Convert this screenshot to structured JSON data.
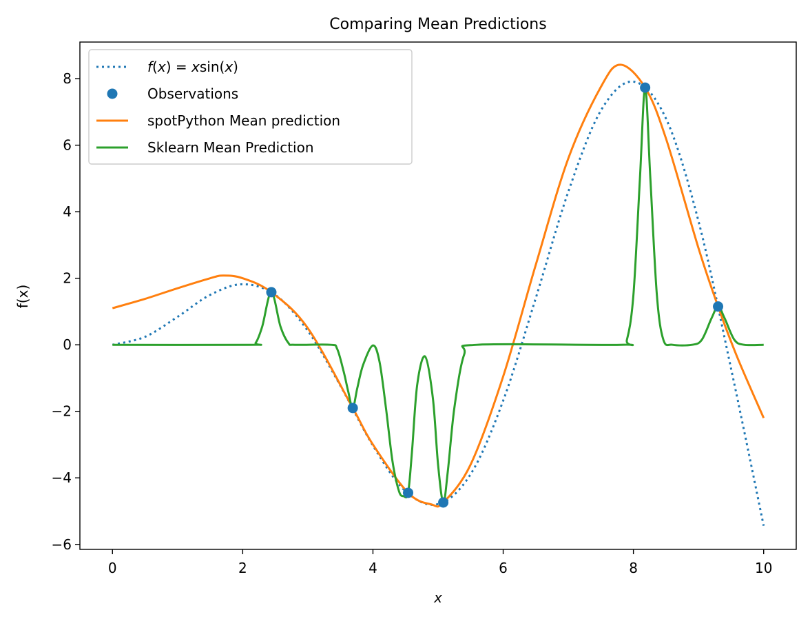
{
  "chart_data": {
    "type": "line",
    "title": "Comparing Mean Predictions",
    "xlabel": "x",
    "ylabel": "f(x)",
    "xlim": [
      -0.5,
      10.5
    ],
    "ylim": [
      -6.15,
      9.1
    ],
    "xticks": [
      0,
      2,
      4,
      6,
      8,
      10
    ],
    "xtick_labels": [
      "0",
      "2",
      "4",
      "6",
      "8",
      "10"
    ],
    "yticks": [
      -6,
      -4,
      -2,
      0,
      2,
      4,
      6,
      8
    ],
    "ytick_labels": [
      "−6",
      "−4",
      "−2",
      "0",
      "2",
      "4",
      "6",
      "8"
    ],
    "grid": false,
    "legend_position": "top-left",
    "colors": {
      "true_function": "#1f77b4",
      "observations": "#1f77b4",
      "spot": "#ff7f0e",
      "sklearn": "#2ca02c"
    },
    "series": [
      {
        "name": "f(x) = xsin(x)",
        "legend_parts": {
          "f": "f",
          "open": "(",
          "x": "x",
          "close": ")",
          "eq": " = ",
          "x2": "x",
          "sin": "sin",
          "open2": "(",
          "x3": "x",
          "close2": ")"
        },
        "kind": "line-dotted",
        "x": [
          0,
          0.5,
          1,
          1.5,
          2,
          2.5,
          3,
          3.5,
          4,
          4.5,
          5,
          5.5,
          6,
          6.5,
          7,
          7.5,
          8,
          8.5,
          9,
          9.5,
          10
        ],
        "y": [
          0,
          0.24,
          0.84,
          1.5,
          1.82,
          1.5,
          0.42,
          -1.23,
          -3.03,
          -4.4,
          -4.79,
          -3.89,
          -1.68,
          1.4,
          4.6,
          7.04,
          7.91,
          6.8,
          3.71,
          -0.72,
          -5.44
        ]
      },
      {
        "name": "Observations",
        "kind": "scatter",
        "x": [
          2.44,
          3.69,
          4.54,
          5.08,
          8.18,
          9.3
        ],
        "y": [
          1.58,
          -1.9,
          -4.45,
          -4.74,
          7.73,
          1.15
        ]
      },
      {
        "name": "spotPython Mean prediction",
        "kind": "line",
        "x": [
          0,
          0.5,
          1,
          1.5,
          1.7,
          2,
          2.44,
          3,
          3.69,
          4,
          4.54,
          4.9,
          5.08,
          5.5,
          6,
          6.5,
          7,
          7.5,
          7.8,
          8.18,
          8.5,
          9,
          9.3,
          9.6,
          10
        ],
        "y": [
          1.1,
          1.38,
          1.7,
          2.0,
          2.08,
          2.0,
          1.58,
          0.5,
          -1.9,
          -3.0,
          -4.45,
          -4.8,
          -4.74,
          -3.6,
          -0.95,
          2.4,
          5.6,
          7.75,
          8.42,
          7.73,
          6.2,
          2.9,
          1.15,
          -0.4,
          -2.2
        ]
      },
      {
        "name": "Sklearn Mean Prediction",
        "kind": "line",
        "x": [
          0,
          2.1,
          2.2,
          2.3,
          2.44,
          2.58,
          2.7,
          2.8,
          3.35,
          3.45,
          3.55,
          3.62,
          3.69,
          3.76,
          3.85,
          4.0,
          4.1,
          4.2,
          4.3,
          4.4,
          4.47,
          4.54,
          4.6,
          4.68,
          4.8,
          4.92,
          5.0,
          5.08,
          5.15,
          5.25,
          5.4,
          5.6,
          7.8,
          7.9,
          8.0,
          8.1,
          8.18,
          8.26,
          8.36,
          8.46,
          8.6,
          8.9,
          9.05,
          9.2,
          9.3,
          9.4,
          9.55,
          9.7,
          10
        ],
        "y": [
          0,
          0,
          0.06,
          0.55,
          1.58,
          0.55,
          0.06,
          0,
          0,
          -0.12,
          -0.8,
          -1.4,
          -1.9,
          -1.3,
          -0.6,
          -0.02,
          -0.5,
          -1.9,
          -3.5,
          -4.4,
          -4.55,
          -4.45,
          -3.2,
          -1.2,
          -0.35,
          -1.6,
          -3.6,
          -4.74,
          -3.8,
          -1.9,
          -0.3,
          0,
          0,
          0.15,
          1.5,
          5.0,
          7.73,
          5.0,
          1.5,
          0.15,
          0,
          0,
          0.15,
          0.8,
          1.15,
          0.8,
          0.15,
          0,
          0
        ]
      }
    ]
  }
}
